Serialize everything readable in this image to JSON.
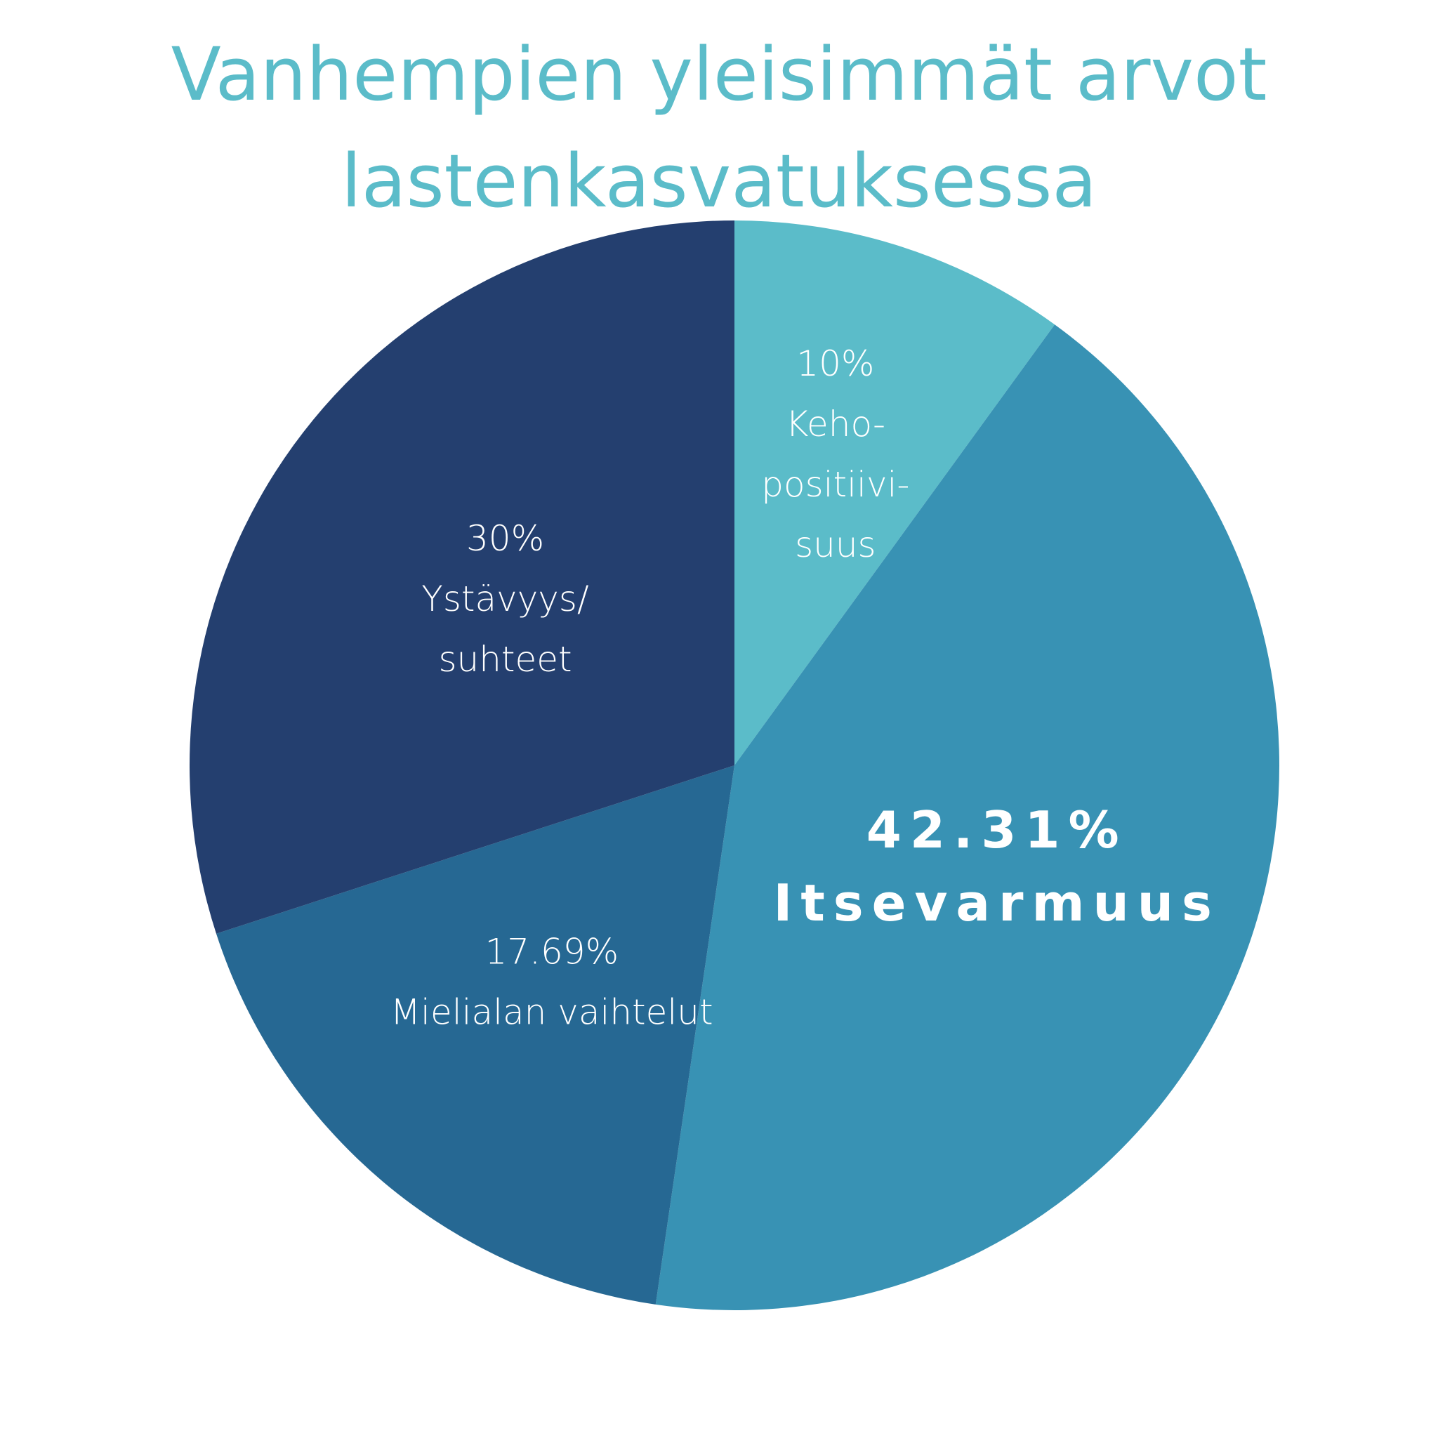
{
  "chart_data": {
    "type": "pie",
    "title_lines": [
      "Vanhempien yleisimmät arvot",
      "lastenkasvatuksessa"
    ],
    "start_angle_deg": 0,
    "direction": "clockwise",
    "slices": [
      {
        "name": "Keho-positiivisuus",
        "value": 10,
        "color": "#5bbcc9",
        "emphasis": false,
        "label_lines": [
          "10%",
          "Keho-",
          "positiivi-",
          "suus"
        ]
      },
      {
        "name": "Itsevarmuus",
        "value": 42.31,
        "color": "#3892b4",
        "emphasis": true,
        "label_lines": [
          "42.31%",
          "Itsevarmuus"
        ]
      },
      {
        "name": "Mielialan vaihtelut",
        "value": 17.69,
        "color": "#266893",
        "emphasis": false,
        "label_lines": [
          "17.69%",
          "Mielialan vaihtelut"
        ]
      },
      {
        "name": "Ystävyys/suhteet",
        "value": 30,
        "color": "#243f6f",
        "emphasis": false,
        "label_lines": [
          "30%",
          "Ystävyys/",
          "suhteet"
        ]
      }
    ]
  }
}
